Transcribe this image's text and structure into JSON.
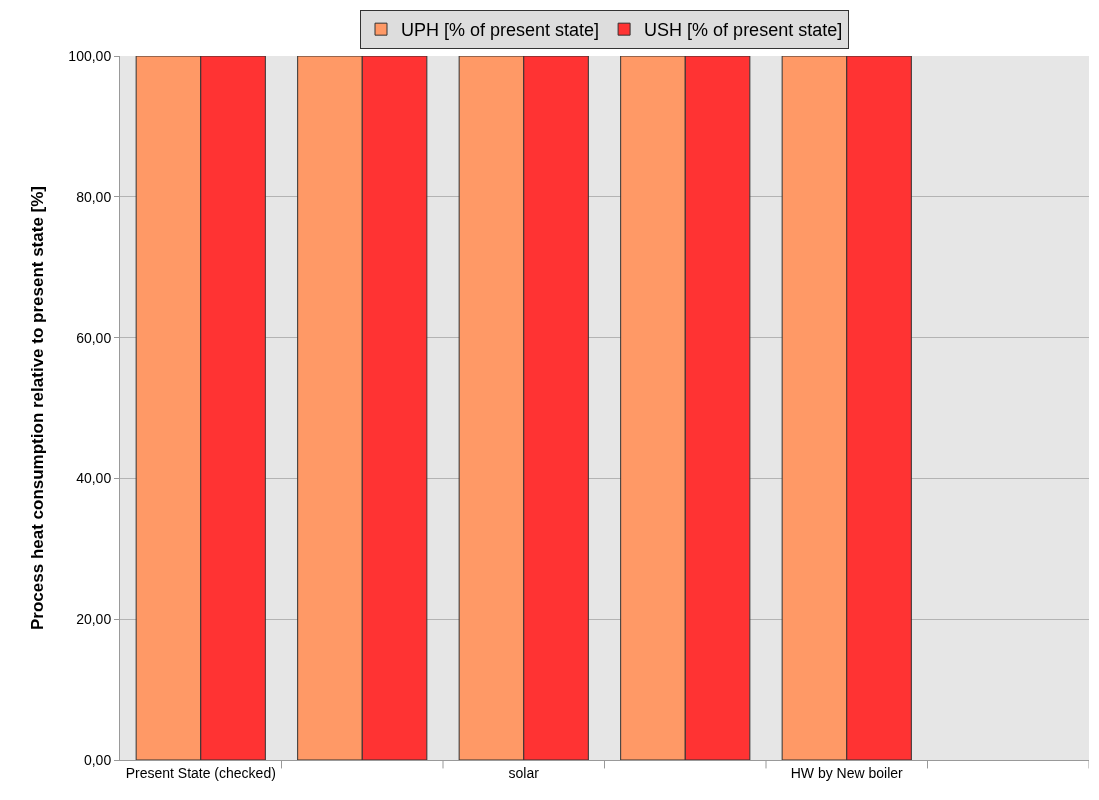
{
  "chart_data": {
    "type": "bar",
    "ylabel": "Process heat consumption relative to present state [%]",
    "categories": [
      "Present State (checked)",
      null,
      "solar",
      null,
      "HW by New boiler",
      null
    ],
    "series": [
      {
        "name": "UPH [% of present state]",
        "color": "#ff9966",
        "values": [
          100,
          100,
          100,
          100,
          100,
          null
        ]
      },
      {
        "name": "USH [% of present state]",
        "color": "#ff3333",
        "values": [
          100,
          100,
          100,
          100,
          100,
          null
        ]
      }
    ],
    "ylim": [
      0,
      100
    ],
    "yticks": [
      {
        "value": 0,
        "label": "0,00"
      },
      {
        "value": 20,
        "label": "20,00"
      },
      {
        "value": 40,
        "label": "40,00"
      },
      {
        "value": 60,
        "label": "60,00"
      },
      {
        "value": 80,
        "label": "80,00"
      },
      {
        "value": 100,
        "label": "100,00"
      }
    ],
    "grid": "y",
    "legend": "top"
  }
}
